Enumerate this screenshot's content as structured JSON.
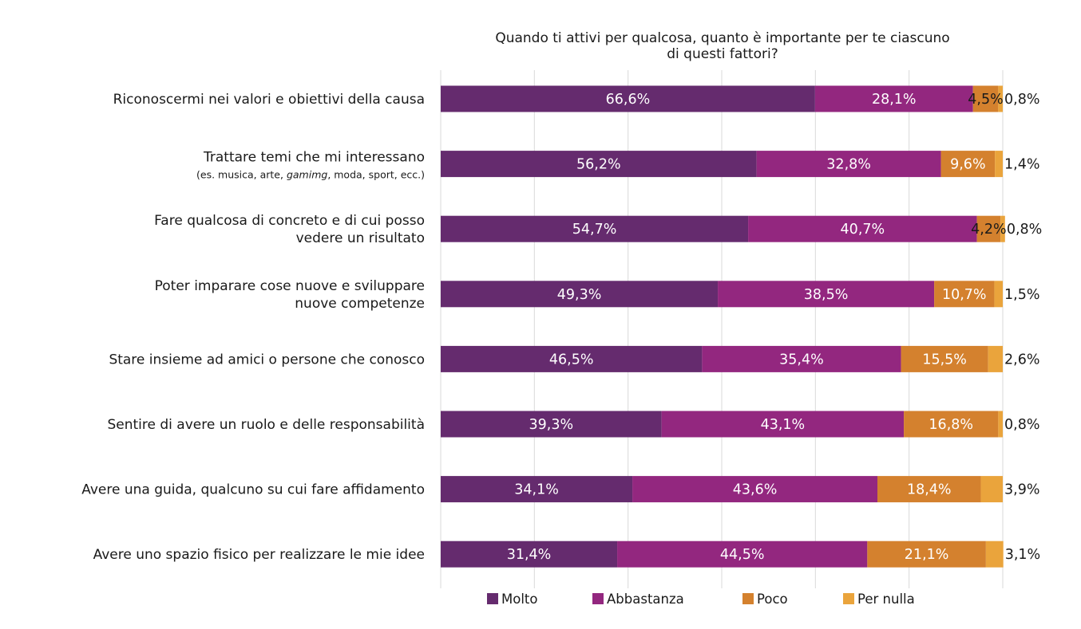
{
  "chart_data": {
    "type": "bar",
    "orientation": "horizontal",
    "stacked": true,
    "title": "Quando ti attivi per qualcosa, quanto è importante per te ciascuno di questi fattori?",
    "title_lines": [
      "Quando ti attivi per qualcosa, quanto è importante per te ciascuno",
      "di questi fattori?"
    ],
    "categories": [
      {
        "lines": [
          "Riconoscermi nei valori e obiettivi della causa"
        ]
      },
      {
        "lines": [
          "Trattare temi che mi interessano"
        ],
        "sublabel_parts": [
          {
            "text": "(es. musica, arte, ",
            "italic": false
          },
          {
            "text": "gamimg",
            "italic": true
          },
          {
            "text": ", moda, sport, ecc.)",
            "italic": false
          }
        ]
      },
      {
        "lines": [
          "Fare qualcosa di concreto e di cui posso",
          "vedere un risultato"
        ]
      },
      {
        "lines": [
          "Poter imparare cose nuove e sviluppare",
          "nuove competenze"
        ]
      },
      {
        "lines": [
          "Stare insieme ad amici o persone che conosco"
        ]
      },
      {
        "lines": [
          "Sentire di avere un ruolo e delle responsabilità"
        ]
      },
      {
        "lines": [
          "Avere una guida, qualcuno su cui fare affidamento"
        ]
      },
      {
        "lines": [
          "Avere uno spazio fisico per realizzare le mie idee"
        ]
      }
    ],
    "series": [
      {
        "name": "Molto",
        "color": "#652b6e",
        "values": [
          66.6,
          56.2,
          54.7,
          49.3,
          46.5,
          39.3,
          34.1,
          31.4
        ],
        "labels": [
          "66,6%",
          "56,2%",
          "54,7%",
          "49,3%",
          "46,5%",
          "39,3%",
          "34,1%",
          "31,4%"
        ]
      },
      {
        "name": "Abbastanza",
        "color": "#93277f",
        "values": [
          28.1,
          32.8,
          40.7,
          38.5,
          35.4,
          43.1,
          43.6,
          44.5
        ],
        "labels": [
          "28,1%",
          "32,8%",
          "40,7%",
          "38,5%",
          "35,4%",
          "43,1%",
          "43,6%",
          "44,5%"
        ]
      },
      {
        "name": "Poco",
        "color": "#d4812e",
        "values": [
          4.5,
          9.6,
          4.2,
          10.7,
          15.5,
          16.8,
          18.4,
          21.1
        ],
        "labels": [
          "4,5%",
          "9,6%",
          "4,2%",
          "10,7%",
          "15,5%",
          "16,8%",
          "18,4%",
          "21,1%"
        ]
      },
      {
        "name": "Per nulla",
        "color": "#eaa43c",
        "values": [
          0.8,
          1.4,
          0.8,
          1.5,
          2.6,
          0.8,
          3.9,
          3.1
        ],
        "labels": [
          "0,8%",
          "1,4%",
          "0,8%",
          "1,5%",
          "2,6%",
          "0,8%",
          "3,9%",
          "3,1%"
        ]
      }
    ],
    "xlim": [
      0,
      100
    ],
    "grid": true,
    "legend_position": "bottom"
  }
}
